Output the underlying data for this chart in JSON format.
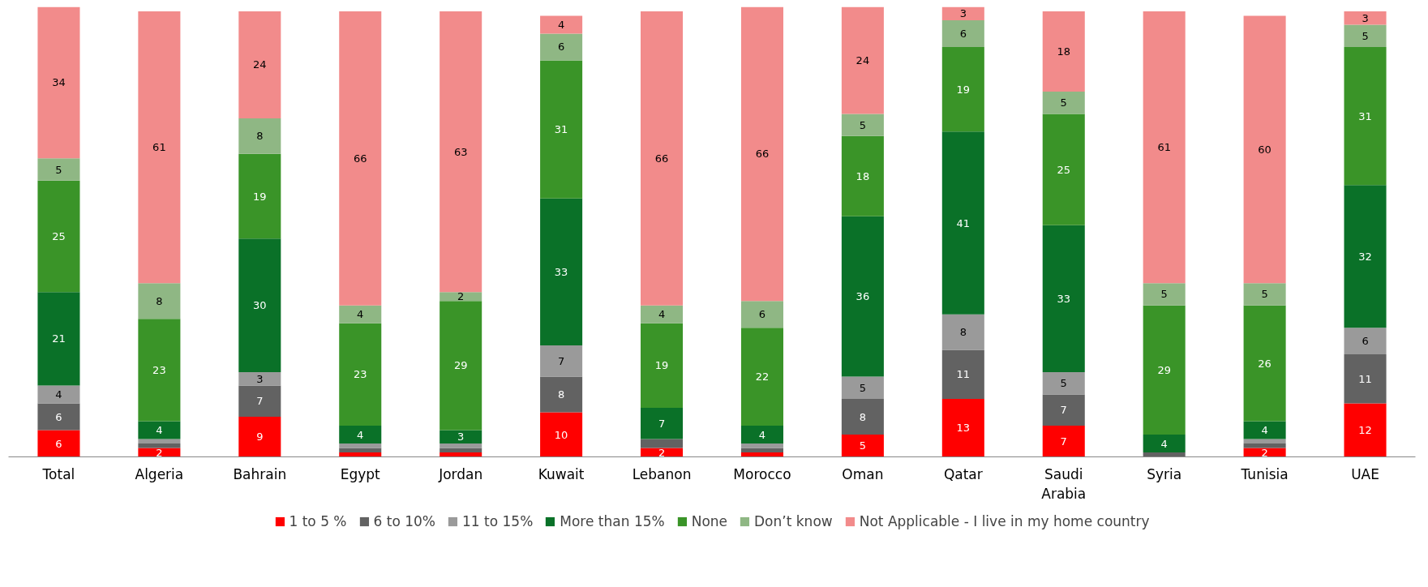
{
  "chart_data": {
    "type": "bar",
    "stacked": true,
    "legend": "bottom",
    "grid": false,
    "ylim": [
      0,
      101
    ],
    "categories": [
      "Total",
      "Algeria",
      "Bahrain",
      "Egypt",
      "Jordan",
      "Kuwait",
      "Lebanon",
      "Morocco",
      "Oman",
      "Qatar",
      "Saudi\nArabia",
      "Syria",
      "Tunisia",
      "UAE"
    ],
    "series": [
      {
        "name": "1 to 5 %",
        "color": "#ff0000",
        "values": [
          6,
          2,
          9,
          1,
          1,
          10,
          2,
          1,
          5,
          13,
          7,
          0,
          2,
          12
        ],
        "value_labels": [
          "6",
          "2",
          "9",
          null,
          null,
          "10",
          "2",
          null,
          "5",
          "13",
          "7",
          null,
          "2",
          "12"
        ]
      },
      {
        "name": "6 to 10%",
        "color": "#626262",
        "values": [
          6,
          1,
          7,
          1,
          1,
          8,
          2,
          1,
          8,
          11,
          7,
          1,
          1,
          11
        ],
        "value_labels": [
          "6",
          null,
          "7",
          null,
          null,
          "8",
          null,
          null,
          "8",
          "11",
          "7",
          null,
          null,
          "11"
        ]
      },
      {
        "name": "11 to 15%",
        "color": "#9a9a9a",
        "values": [
          4,
          1,
          3,
          1,
          1,
          7,
          0,
          1,
          5,
          8,
          5,
          0,
          1,
          6
        ],
        "value_labels": [
          "4",
          null,
          "3",
          null,
          null,
          "7",
          null,
          null,
          "5",
          "8",
          "5",
          null,
          null,
          "6"
        ]
      },
      {
        "name": "More than 15%",
        "color": "#0a7128",
        "values": [
          21,
          4,
          30,
          4,
          3,
          33,
          7,
          4,
          36,
          41,
          33,
          4,
          4,
          32
        ],
        "value_labels": [
          "21",
          "4",
          "30",
          "4",
          "3",
          "33",
          "7",
          "4",
          "36",
          "41",
          "33",
          "4",
          "4",
          "32"
        ]
      },
      {
        "name": "None",
        "color": "#3a9428",
        "values": [
          25,
          23,
          19,
          23,
          29,
          31,
          19,
          22,
          18,
          19,
          25,
          29,
          26,
          31
        ],
        "value_labels": [
          "25",
          "23",
          "19",
          "23",
          "29",
          "31",
          "19",
          "22",
          "18",
          "19",
          "25",
          "29",
          "26",
          "31"
        ]
      },
      {
        "name": "Don’t know",
        "color": "#8fb784",
        "values": [
          5,
          8,
          8,
          4,
          2,
          6,
          4,
          6,
          5,
          6,
          5,
          5,
          5,
          5
        ],
        "value_labels": [
          "5",
          "8",
          "8",
          "4",
          "2",
          "6",
          "4",
          "6",
          "5",
          "6",
          "5",
          "5",
          "5",
          "5"
        ]
      },
      {
        "name": "Not Applicable - I live in my home country",
        "color": "#f28b8b",
        "values": [
          34,
          61,
          24,
          66,
          63,
          4,
          66,
          66,
          24,
          3,
          18,
          61,
          60,
          3
        ],
        "value_labels": [
          "34",
          "61",
          "24",
          "66",
          "63",
          "4",
          "66",
          "66",
          "24",
          "3",
          "18",
          "61",
          "60",
          "3"
        ]
      }
    ]
  }
}
